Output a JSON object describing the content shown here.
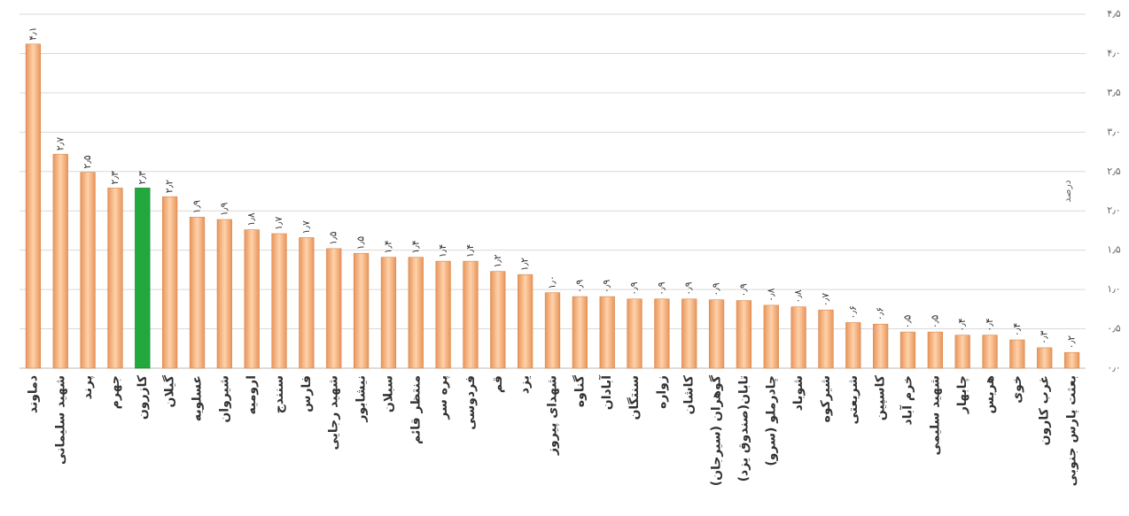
{
  "chart_data": {
    "type": "bar",
    "y_label": "درصد",
    "categories": [
      "دماوند",
      "شهید سلیمانی",
      "پرند",
      "جهرم",
      "کازرون",
      "گیلان",
      "عسلویه",
      "شیروان",
      "ارومیه",
      "سنندج",
      "فارس",
      "شهید رجایی",
      "نیشابور",
      "سبلان",
      "منتظر قائم",
      "پره سر",
      "فردوسی",
      "قم",
      "یزد",
      "شهدای پیروز",
      "گناوه",
      "آبادان",
      "سنتگان",
      "زواره",
      "کاشان",
      "گوهران (سیرجان)",
      "تابان(صندوق یزد)",
      "چادرملو (سرو)",
      "شوباد",
      "شیرکوه",
      "شریعتی",
      "کاسپین",
      "خرم آباد",
      "شهید سلیمی",
      "چابهار",
      "هریس",
      "خوی",
      "غرب کارون",
      "بعثت پارس جنوبی"
    ],
    "values": [
      4.12,
      2.72,
      2.49,
      2.29,
      2.29,
      2.18,
      1.92,
      1.89,
      1.76,
      1.71,
      1.66,
      1.52,
      1.46,
      1.41,
      1.41,
      1.36,
      1.36,
      1.23,
      1.19,
      0.96,
      0.91,
      0.91,
      0.88,
      0.88,
      0.88,
      0.87,
      0.86,
      0.8,
      0.78,
      0.74,
      0.58,
      0.56,
      0.46,
      0.46,
      0.42,
      0.42,
      0.36,
      0.26,
      0.2
    ],
    "value_labels": [
      "۴٫۱",
      "۲٫۷",
      "۲٫۵",
      "۲٫۳",
      "۲٫۳",
      "۲٫۲",
      "۱٫۹",
      "۱٫۹",
      "۱٫۸",
      "۱٫۷",
      "۱٫۷",
      "۱٫۵",
      "۱٫۵",
      "۱٫۴",
      "۱٫۴",
      "۱٫۴",
      "۱٫۴",
      "۱٫۲",
      "۱٫۲",
      "۱٫۰",
      "۰٫۹",
      "۰٫۹",
      "۰٫۹",
      "۰٫۹",
      "۰٫۹",
      "۰٫۹",
      "۰٫۹",
      "۰٫۸",
      "۰٫۸",
      "۰٫۷",
      "۰٫۶",
      "۰٫۶",
      "۰٫۵",
      "۰٫۵",
      "۰٫۴",
      "۰٫۴",
      "۰٫۴",
      "۰٫۳",
      "۰٫۲"
    ],
    "color": "#f7b98a",
    "highlight": {
      "index": 4,
      "color": "#22a83c"
    },
    "ylim": [
      0,
      4.5
    ],
    "yticks": [
      {
        "value": 0,
        "label": "۰٫۰"
      },
      {
        "value": 0.5,
        "label": "۰٫۵"
      },
      {
        "value": 1,
        "label": "۱٫۰"
      },
      {
        "value": 1.5,
        "label": "۱٫۵"
      },
      {
        "value": 2,
        "label": "۲٫۰"
      },
      {
        "value": 2.5,
        "label": "۲٫۵"
      },
      {
        "value": 3,
        "label": "۳٫۰"
      },
      {
        "value": 3.5,
        "label": "۳٫۵"
      },
      {
        "value": 4,
        "label": "۴٫۰"
      },
      {
        "value": 4.5,
        "label": "۴٫۵"
      }
    ],
    "grid": true
  }
}
